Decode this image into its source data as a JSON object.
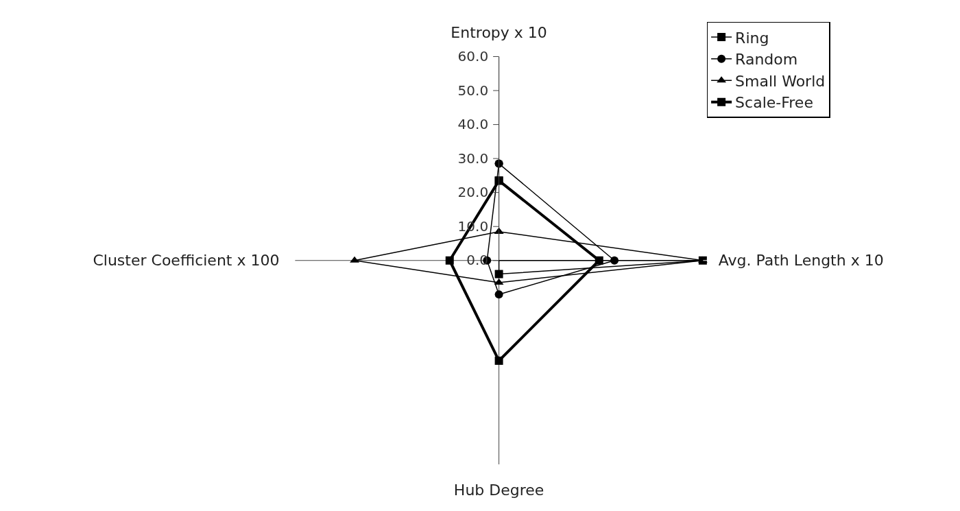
{
  "chart_data": {
    "type": "radar",
    "categories": [
      "Entropy x 10",
      "Avg. Path Length x 10",
      "Hub Degree",
      "Cluster Coefficient x 100"
    ],
    "series": [
      {
        "name": "Ring",
        "color": "#000000",
        "marker": "square",
        "values": [
          0,
          60,
          4,
          0
        ]
      },
      {
        "name": "Random",
        "color": "#000000",
        "marker": "circle",
        "values": [
          28.5,
          34,
          10,
          3.5
        ]
      },
      {
        "name": "Small World",
        "color": "#000000",
        "marker": "triangle",
        "values": [
          8.5,
          60,
          6.5,
          42.5
        ]
      },
      {
        "name": "Scale-Free",
        "color": "#000000",
        "marker": "square",
        "values": [
          23.5,
          29.5,
          29.5,
          14.5
        ]
      }
    ],
    "ylim": [
      0,
      60
    ],
    "yticks": [
      {
        "value": 0,
        "label": "0.0"
      },
      {
        "value": 10,
        "label": "10.0"
      },
      {
        "value": 20,
        "label": "20.0"
      },
      {
        "value": 30,
        "label": "30.0"
      },
      {
        "value": 40,
        "label": "40.0"
      },
      {
        "value": 50,
        "label": "50.0"
      },
      {
        "value": 60,
        "label": "60.0"
      }
    ],
    "grid": false,
    "legend": "top right"
  }
}
